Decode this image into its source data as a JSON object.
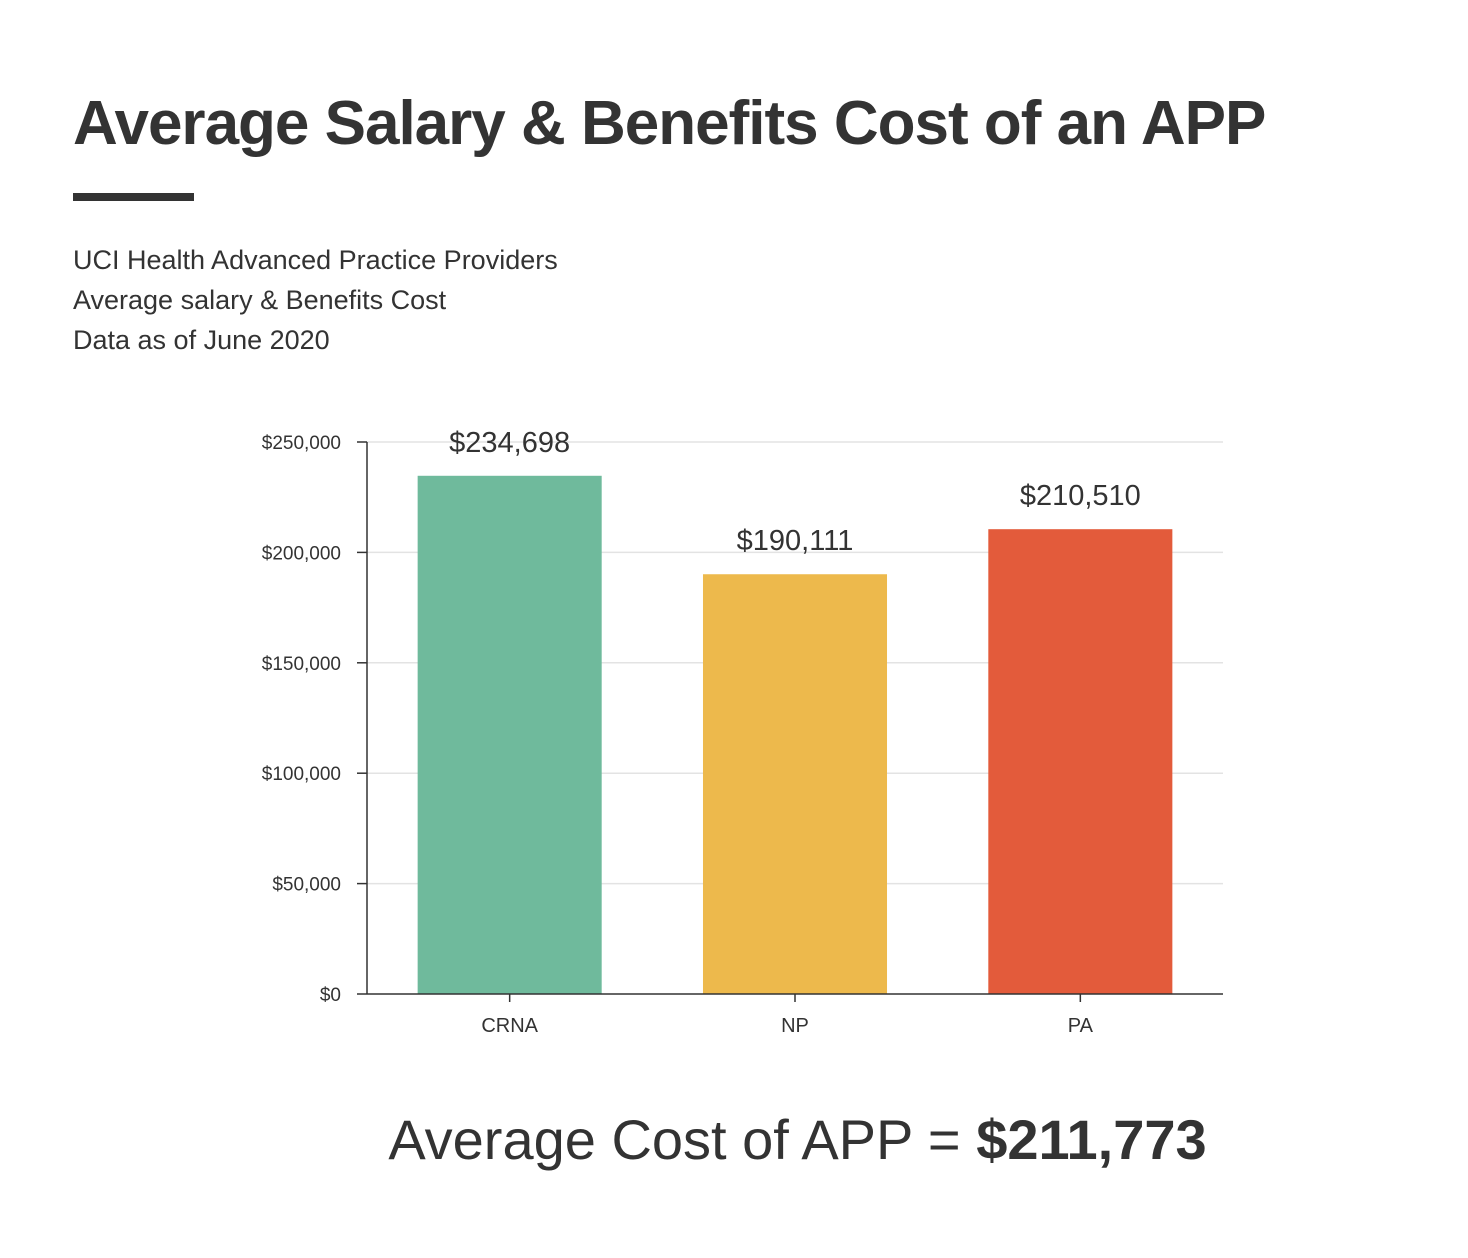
{
  "header": {
    "title": "Average Salary & Benefits Cost of an APP",
    "subtitle_lines": [
      "UCI Health Advanced Practice Providers",
      "Average salary & Benefits Cost",
      "Data as of June 2020"
    ]
  },
  "footer": {
    "label": "Average Cost of APP =",
    "value": "$211,773"
  },
  "chart_data": {
    "type": "bar",
    "categories": [
      "CRNA",
      "NP",
      "PA"
    ],
    "values": [
      234698,
      190111,
      210510
    ],
    "data_labels": [
      "$234,698",
      "$190,111",
      "$210,510"
    ],
    "colors": [
      "#6fba9c",
      "#edb94c",
      "#e35b3b"
    ],
    "ylim": [
      0,
      250000
    ],
    "yticks": [
      0,
      50000,
      100000,
      150000,
      200000,
      250000
    ],
    "ytick_labels": [
      "$0",
      "$50,000",
      "$100,000",
      "$150,000",
      "$200,000",
      "$250,000"
    ],
    "grid": true
  }
}
